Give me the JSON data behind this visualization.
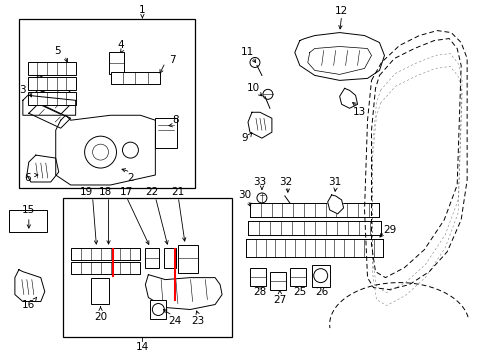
{
  "bg_color": "#ffffff",
  "line_color": "#000000",
  "red_color": "#ff0000",
  "figsize": [
    4.89,
    3.6
  ],
  "dpi": 100
}
